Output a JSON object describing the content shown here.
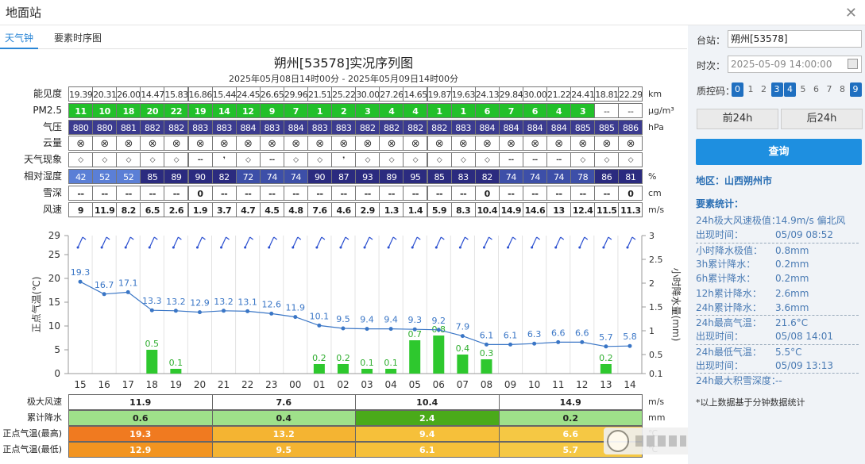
{
  "window": {
    "title": "地面站"
  },
  "tabs": [
    {
      "label": "天气钟",
      "active": true
    },
    {
      "label": "要素时序图",
      "active": false
    }
  ],
  "chart": {
    "title": "朔州[53578]实况序列图",
    "subtitle": "2025年05月08日14时00分 - 2025年05月09日14时00分"
  },
  "hours": [
    "15",
    "16",
    "17",
    "18",
    "19",
    "20",
    "21",
    "22",
    "23",
    "00",
    "01",
    "02",
    "03",
    "04",
    "05",
    "06",
    "07",
    "08",
    "09",
    "10",
    "11",
    "12",
    "13",
    "14"
  ],
  "rows": {
    "visibility": {
      "label": "能见度",
      "unit": "km",
      "values": [
        "19.39",
        "20.31",
        "26.00",
        "14.47",
        "15.83",
        "16.86",
        "15.44",
        "24.45",
        "26.65",
        "29.96",
        "21.51",
        "25.22",
        "30.00",
        "27.26",
        "14.65",
        "19.87",
        "19.63",
        "24.13",
        "29.84",
        "30.00",
        "21.22",
        "24.41",
        "18.81",
        "22.29"
      ]
    },
    "pm25": {
      "label": "PM2.5",
      "unit": "μg/m³",
      "values": [
        "11",
        "10",
        "18",
        "20",
        "22",
        "19",
        "14",
        "12",
        "9",
        "7",
        "1",
        "2",
        "3",
        "4",
        "4",
        "1",
        "1",
        "6",
        "7",
        "6",
        "4",
        "3",
        "--",
        "--"
      ]
    },
    "pressure": {
      "label": "气压",
      "unit": "hPa",
      "values": [
        "880",
        "880",
        "881",
        "882",
        "882",
        "883",
        "883",
        "884",
        "883",
        "884",
        "883",
        "883",
        "882",
        "882",
        "882",
        "882",
        "883",
        "884",
        "884",
        "884",
        "884",
        "885",
        "885",
        "886"
      ]
    },
    "cloud": {
      "label": "云量",
      "symbol": "⊗"
    },
    "weather": {
      "label": "天气现象",
      "values": [
        "◇",
        "◇",
        "◇",
        "◇",
        "◇",
        "--",
        "❜",
        "◇",
        "--",
        "◇",
        "◇",
        "❜",
        "◇",
        "◇",
        "◇",
        "◇",
        "◇",
        "◇",
        "--",
        "--",
        "--",
        "◇",
        "◇",
        "◇"
      ]
    },
    "humidity": {
      "label": "相对湿度",
      "unit": "%",
      "values": [
        "42",
        "52",
        "52",
        "85",
        "89",
        "90",
        "82",
        "72",
        "74",
        "74",
        "90",
        "87",
        "93",
        "89",
        "95",
        "85",
        "83",
        "82",
        "74",
        "74",
        "74",
        "78",
        "86",
        "81"
      ]
    },
    "snow": {
      "label": "雪深",
      "unit": "cm",
      "values": [
        "--",
        "--",
        "--",
        "--",
        "--",
        "0",
        "--",
        "--",
        "--",
        "--",
        "--",
        "--",
        "--",
        "--",
        "--",
        "--",
        "--",
        "0",
        "--",
        "--",
        "--",
        "--",
        "--",
        "0"
      ]
    },
    "wind": {
      "label": "风速",
      "unit": "m/s",
      "values": [
        "9",
        "11.9",
        "8.2",
        "6.5",
        "2.6",
        "1.9",
        "3.7",
        "4.7",
        "4.5",
        "4.8",
        "7.6",
        "4.6",
        "2.9",
        "1.3",
        "1.4",
        "5.9",
        "8.3",
        "10.4",
        "14.9",
        "14.6",
        "13",
        "12.4",
        "11.5",
        "11.3"
      ]
    }
  },
  "colors": {
    "pm_excellent": "#22c02a",
    "pressure_bg": "#3b3b8f",
    "humidity_light": "#5b7fd6",
    "humidity_dark": "#2b2b7f",
    "temp_line": "#3a76c6",
    "precip_bar": "#2ec82e",
    "accent": "#1e8fe0"
  },
  "chart_data": {
    "type": "line",
    "x": [
      "15",
      "16",
      "17",
      "18",
      "19",
      "20",
      "21",
      "22",
      "23",
      "00",
      "01",
      "02",
      "03",
      "04",
      "05",
      "06",
      "07",
      "08",
      "09",
      "10",
      "11",
      "12",
      "13",
      "14"
    ],
    "series": [],
    "temperature": [
      19.3,
      16.7,
      17.1,
      13.3,
      13.2,
      12.9,
      13.2,
      13.1,
      12.6,
      11.9,
      10.1,
      9.5,
      9.4,
      9.4,
      9.3,
      9.2,
      7.9,
      6.1,
      6.1,
      6.3,
      6.6,
      6.6,
      5.7,
      5.8
    ],
    "precipitation": [
      null,
      null,
      null,
      0.5,
      0.1,
      null,
      null,
      null,
      null,
      null,
      0.2,
      0.2,
      0.1,
      0.1,
      0.7,
      0.8,
      0.4,
      0.3,
      null,
      null,
      null,
      null,
      0.2,
      null
    ],
    "ylabel_left": "正点气温(℃)",
    "ylabel_right": "小时降水量(mm)",
    "ylim_left": [
      0,
      29
    ],
    "ylim_right": [
      0.1,
      3
    ],
    "left_ticks": [
      "0",
      "5",
      "10",
      "15",
      "20",
      "25",
      "29"
    ],
    "right_ticks": [
      "0.1",
      "0.5",
      "1",
      "1.5",
      "2",
      "2.5",
      "3"
    ]
  },
  "summary": {
    "rows": [
      {
        "label": "极大风速",
        "unit": "m/s",
        "values": [
          "11.9",
          "7.6",
          "10.4",
          "14.9"
        ]
      },
      {
        "label": "累计降水",
        "unit": "mm",
        "values": [
          "0.6",
          "0.4",
          "2.4",
          "0.2"
        ]
      },
      {
        "label": "正点气温(最高)",
        "unit": "℃",
        "values": [
          "19.3",
          "13.2",
          "9.4",
          "6.6"
        ]
      },
      {
        "label": "正点气温(最低)",
        "unit": "℃",
        "values": [
          "12.9",
          "9.5",
          "6.1",
          "5.7"
        ]
      }
    ]
  },
  "panel": {
    "station_label": "台站：",
    "station_value": "朔州[53578]",
    "time_label": "时次：",
    "time_value": "2025-05-09 14:00:00",
    "qc_label": "质控码：",
    "qc_codes": [
      "0",
      "1",
      "2",
      "3",
      "4",
      "5",
      "6",
      "7",
      "8",
      "9"
    ],
    "qc_selected": [
      "0",
      "3",
      "4",
      "9"
    ],
    "prev_button": "前24h",
    "next_button": "后24h",
    "query_button": "查询",
    "region": "地区：山西朔州市",
    "stats_title": "要素统计：",
    "stats": [
      {
        "k": "24h极大风速极值：",
        "v": "14.9m/s 偏北风"
      },
      {
        "k": "出现时间：",
        "v": "05/09 08:52"
      },
      {
        "k": "小时降水极值：",
        "v": "0.8mm"
      },
      {
        "k": "3h累计降水：",
        "v": "0.2mm"
      },
      {
        "k": "6h累计降水：",
        "v": "0.2mm"
      },
      {
        "k": "12h累计降水：",
        "v": "2.6mm"
      },
      {
        "k": "24h累计降水：",
        "v": "3.6mm"
      },
      {
        "k": "24h最高气温：",
        "v": "21.6°C"
      },
      {
        "k": "出现时间：",
        "v": "05/08 14:01"
      },
      {
        "k": "24h最低气温：",
        "v": "5.5°C"
      },
      {
        "k": "出现时间：",
        "v": "05/09 13:13"
      },
      {
        "k": "24h最大积雪深度：",
        "v": "--"
      }
    ],
    "note": "*以上数据基于分钟数据统计"
  }
}
